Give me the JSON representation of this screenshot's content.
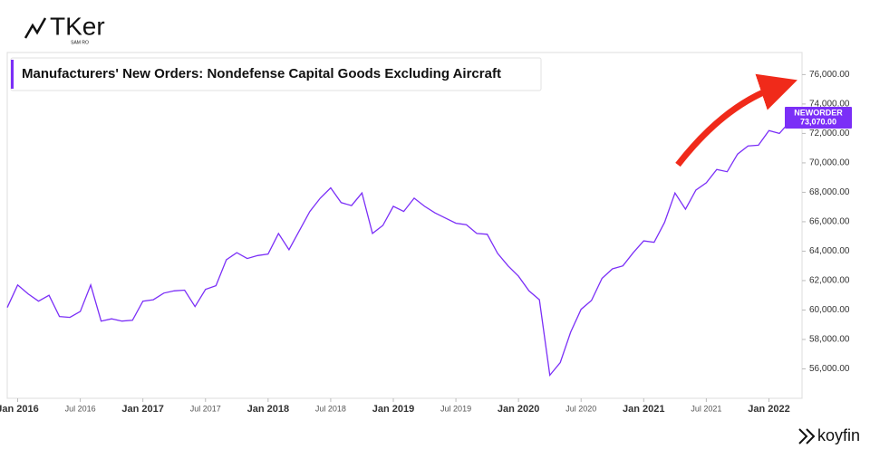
{
  "logo": {
    "brand": "TKer",
    "author": "SAM RO"
  },
  "footer": {
    "source": "koyfin"
  },
  "chart_data": {
    "type": "line",
    "title": "Manufacturers' New Orders: Nondefense Capital Goods Excluding Aircraft",
    "x": [
      "2015-12",
      "2016-01",
      "2016-02",
      "2016-03",
      "2016-04",
      "2016-05",
      "2016-06",
      "2016-07",
      "2016-08",
      "2016-09",
      "2016-10",
      "2016-11",
      "2016-12",
      "2017-01",
      "2017-02",
      "2017-03",
      "2017-04",
      "2017-05",
      "2017-06",
      "2017-07",
      "2017-08",
      "2017-09",
      "2017-10",
      "2017-11",
      "2017-12",
      "2018-01",
      "2018-02",
      "2018-03",
      "2018-04",
      "2018-05",
      "2018-06",
      "2018-07",
      "2018-08",
      "2018-09",
      "2018-10",
      "2018-11",
      "2018-12",
      "2019-01",
      "2019-02",
      "2019-03",
      "2019-04",
      "2019-05",
      "2019-06",
      "2019-07",
      "2019-08",
      "2019-09",
      "2019-10",
      "2019-11",
      "2019-12",
      "2020-01",
      "2020-02",
      "2020-03",
      "2020-04",
      "2020-05",
      "2020-06",
      "2020-07",
      "2020-08",
      "2020-09",
      "2020-10",
      "2020-11",
      "2020-12",
      "2021-01",
      "2021-02",
      "2021-03",
      "2021-04",
      "2021-05",
      "2021-06",
      "2021-07",
      "2021-08",
      "2021-09",
      "2021-10",
      "2021-11",
      "2021-12",
      "2022-01",
      "2022-02",
      "2022-03",
      "2022-04"
    ],
    "series": [
      {
        "name": "NEWORDER",
        "color": "#7b2ff7",
        "values": [
          60170,
          61700,
          61100,
          60600,
          61000,
          59560,
          59500,
          59900,
          61700,
          59250,
          59400,
          59250,
          59300,
          60600,
          60700,
          61150,
          61300,
          61350,
          60230,
          61400,
          61650,
          63420,
          63900,
          63500,
          63700,
          63800,
          65200,
          64100,
          65400,
          66700,
          67600,
          68300,
          67300,
          67100,
          67950,
          65200,
          65750,
          67050,
          66700,
          67600,
          67050,
          66600,
          66250,
          65900,
          65800,
          65200,
          65150,
          63850,
          63000,
          62300,
          61300,
          60700,
          55570,
          56430,
          58500,
          60050,
          60650,
          62150,
          62800,
          63000,
          63900,
          64700,
          64600,
          65950,
          67950,
          66850,
          68150,
          68650,
          69550,
          69400,
          70600,
          71150,
          71200,
          72200,
          72000,
          72800,
          73070
        ],
        "value_labels": [
          null,
          null,
          null,
          null,
          null,
          null,
          null,
          null,
          null,
          null,
          null,
          null,
          null,
          null,
          null,
          null,
          null,
          null,
          null,
          null,
          null,
          null,
          null,
          null,
          null,
          null,
          null,
          null,
          null,
          null,
          null,
          null,
          null,
          null,
          null,
          null,
          null,
          null,
          null,
          null,
          null,
          null,
          null,
          null,
          null,
          null,
          null,
          null,
          null,
          null,
          null,
          null,
          null,
          null,
          null,
          null,
          null,
          null,
          null,
          null,
          null,
          null,
          null,
          null,
          null,
          null,
          null,
          null,
          null,
          null,
          null,
          null,
          null,
          null,
          null,
          null,
          "73,070.00"
        ]
      }
    ],
    "xlim": [
      "2015-12",
      "2022-04"
    ],
    "xticks": [
      {
        "value": "2016-01",
        "label": "Jan 2016"
      },
      {
        "value": "2016-07",
        "label": "Jul 2016"
      },
      {
        "value": "2017-01",
        "label": "Jan 2017"
      },
      {
        "value": "2017-07",
        "label": "Jul 2017"
      },
      {
        "value": "2018-01",
        "label": "Jan 2018"
      },
      {
        "value": "2018-07",
        "label": "Jul 2018"
      },
      {
        "value": "2019-01",
        "label": "Jan 2019"
      },
      {
        "value": "2019-07",
        "label": "Jul 2019"
      },
      {
        "value": "2020-01",
        "label": "Jan 2020"
      },
      {
        "value": "2020-07",
        "label": "Jul 2020"
      },
      {
        "value": "2021-01",
        "label": "Jan 2021"
      },
      {
        "value": "2021-07",
        "label": "Jul 2021"
      },
      {
        "value": "2022-01",
        "label": "Jan 2022"
      }
    ],
    "ylim": [
      54000,
      77500
    ],
    "yticks": [
      {
        "value": 56000,
        "label": "56,000.00"
      },
      {
        "value": 58000,
        "label": "58,000.00"
      },
      {
        "value": 60000,
        "label": "60,000.00"
      },
      {
        "value": 62000,
        "label": "62,000.00"
      },
      {
        "value": 64000,
        "label": "64,000.00"
      },
      {
        "value": 66000,
        "label": "66,000.00"
      },
      {
        "value": 68000,
        "label": "68,000.00"
      },
      {
        "value": 70000,
        "label": "70,000.00"
      },
      {
        "value": 72000,
        "label": "72,000.00"
      },
      {
        "value": 74000,
        "label": "74,000.00"
      },
      {
        "value": 76000,
        "label": "76,000.00"
      }
    ],
    "grid": false
  }
}
